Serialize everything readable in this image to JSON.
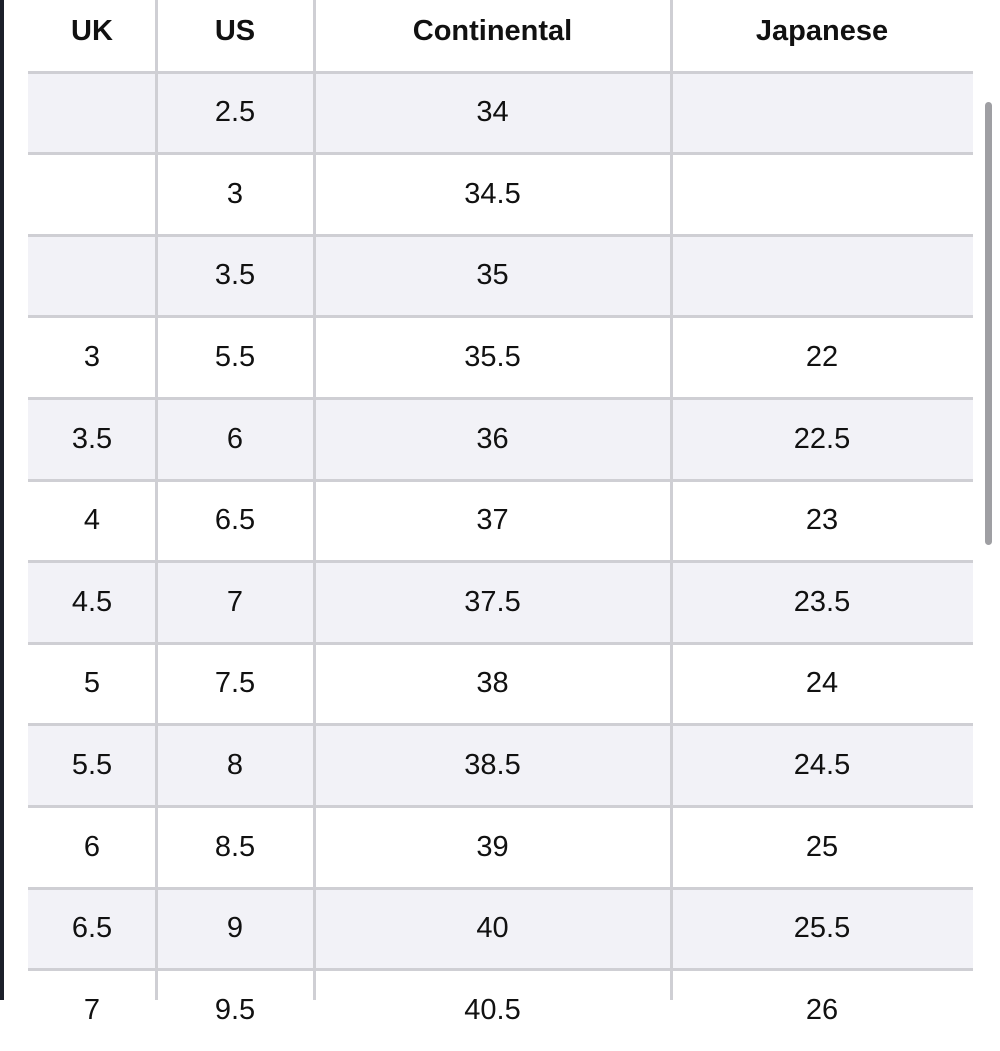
{
  "table": {
    "header": [
      "UK",
      "US",
      "Continental",
      "Japanese"
    ],
    "rows": [
      [
        null,
        "2.5",
        "34",
        null
      ],
      [
        null,
        "3",
        "34.5",
        null
      ],
      [
        null,
        "3.5",
        "35",
        null
      ],
      [
        "3",
        "5.5",
        "35.5",
        "22"
      ],
      [
        "3.5",
        "6",
        "36",
        "22.5"
      ],
      [
        "4",
        "6.5",
        "37",
        "23"
      ],
      [
        "4.5",
        "7",
        "37.5",
        "23.5"
      ],
      [
        "5",
        "7.5",
        "38",
        "24"
      ],
      [
        "5.5",
        "8",
        "38.5",
        "24.5"
      ],
      [
        "6",
        "8.5",
        "39",
        "25"
      ],
      [
        "6.5",
        "9",
        "40",
        "25.5"
      ],
      [
        "7",
        "9.5",
        "40.5",
        "26"
      ]
    ]
  }
}
